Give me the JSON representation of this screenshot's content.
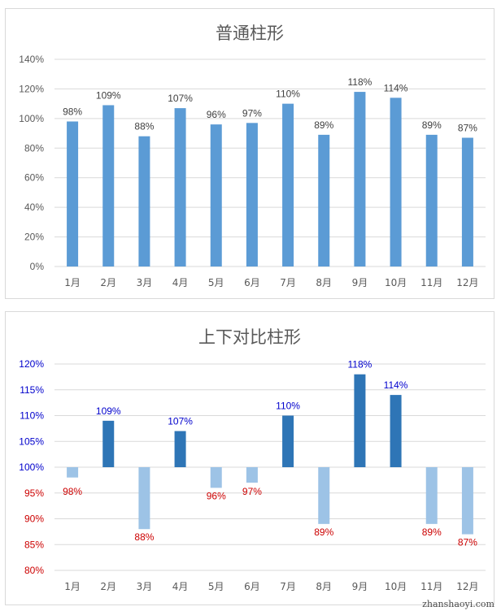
{
  "chart_data": [
    {
      "type": "bar",
      "title": "普通柱形",
      "categories": [
        "1月",
        "2月",
        "3月",
        "4月",
        "5月",
        "6月",
        "7月",
        "8月",
        "9月",
        "10月",
        "11月",
        "12月"
      ],
      "values": [
        98,
        109,
        88,
        107,
        96,
        97,
        110,
        89,
        118,
        114,
        89,
        87
      ],
      "data_labels": [
        "98%",
        "109%",
        "88%",
        "107%",
        "96%",
        "97%",
        "110%",
        "89%",
        "118%",
        "114%",
        "89%",
        "87%"
      ],
      "yticks": [
        "0%",
        "20%",
        "40%",
        "60%",
        "80%",
        "100%",
        "120%",
        "140%"
      ],
      "ylim": [
        0,
        140
      ],
      "grid": true,
      "colors": {
        "bar": "#5b9bd5",
        "label": "#404040",
        "tick": "#595959",
        "grid": "#d9d9d9"
      }
    },
    {
      "type": "bar",
      "title": "上下对比柱形",
      "categories": [
        "1月",
        "2月",
        "3月",
        "4月",
        "5月",
        "6月",
        "7月",
        "8月",
        "9月",
        "10月",
        "11月",
        "12月"
      ],
      "values": [
        98,
        109,
        88,
        107,
        96,
        97,
        110,
        89,
        118,
        114,
        89,
        87
      ],
      "baseline": 100,
      "data_labels": [
        "98%",
        "109%",
        "88%",
        "107%",
        "96%",
        "97%",
        "110%",
        "89%",
        "118%",
        "114%",
        "89%",
        "87%"
      ],
      "yticks": [
        "80%",
        "85%",
        "90%",
        "95%",
        "100%",
        "105%",
        "110%",
        "115%",
        "120%"
      ],
      "ylim": [
        80,
        120
      ],
      "grid": true,
      "colors": {
        "bar_above": "#2e75b6",
        "bar_below": "#9dc3e6",
        "label_above": "#0000cc",
        "label_below": "#cc0000",
        "tick_above": "#0000cc",
        "tick_below": "#cc0000",
        "tick": "#595959",
        "grid": "#d9d9d9"
      }
    }
  ],
  "watermark": "zhanshaoyi.com"
}
